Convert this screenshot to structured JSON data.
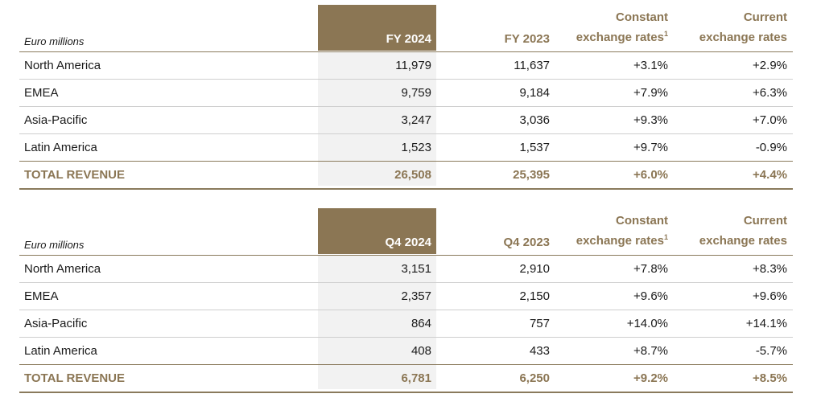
{
  "tables": [
    {
      "unit_label": "Euro millions",
      "headers": {
        "current_period": "FY 2024",
        "prior_period": "FY 2023",
        "constant_line1": "Constant",
        "constant_line2": "exchange rates",
        "constant_footnote": "1",
        "current_fx_line1": "Current",
        "current_fx_line2": "exchange rates"
      },
      "rows": [
        {
          "region": "North America",
          "current": "11,979",
          "prior": "11,637",
          "constant": "+3.1%",
          "current_fx": "+2.9%"
        },
        {
          "region": "EMEA",
          "current": "9,759",
          "prior": "9,184",
          "constant": "+7.9%",
          "current_fx": "+6.3%"
        },
        {
          "region": "Asia-Pacific",
          "current": "3,247",
          "prior": "3,036",
          "constant": "+9.3%",
          "current_fx": "+7.0%"
        },
        {
          "region": "Latin America",
          "current": "1,523",
          "prior": "1,537",
          "constant": "+9.7%",
          "current_fx": "-0.9%"
        }
      ],
      "total": {
        "region": "TOTAL REVENUE",
        "current": "26,508",
        "prior": "25,395",
        "constant": "+6.0%",
        "current_fx": "+4.4%"
      }
    },
    {
      "unit_label": "Euro millions",
      "headers": {
        "current_period": "Q4 2024",
        "prior_period": "Q4 2023",
        "constant_line1": "Constant",
        "constant_line2": "exchange rates",
        "constant_footnote": "1",
        "current_fx_line1": "Current",
        "current_fx_line2": "exchange rates"
      },
      "rows": [
        {
          "region": "North America",
          "current": "3,151",
          "prior": "2,910",
          "constant": "+7.8%",
          "current_fx": "+8.3%"
        },
        {
          "region": "EMEA",
          "current": "2,357",
          "prior": "2,150",
          "constant": "+9.6%",
          "current_fx": "+9.6%"
        },
        {
          "region": "Asia-Pacific",
          "current": "864",
          "prior": "757",
          "constant": "+14.0%",
          "current_fx": "+14.1%"
        },
        {
          "region": "Latin America",
          "current": "408",
          "prior": "433",
          "constant": "+8.7%",
          "current_fx": "-5.7%"
        }
      ],
      "total": {
        "region": "TOTAL REVENUE",
        "current": "6,781",
        "prior": "6,250",
        "constant": "+9.2%",
        "current_fx": "+8.5%"
      }
    }
  ],
  "colors": {
    "accent": "#8b7654",
    "highlight_body": "#f2f2f2",
    "row_divider": "#cfcfcf"
  }
}
